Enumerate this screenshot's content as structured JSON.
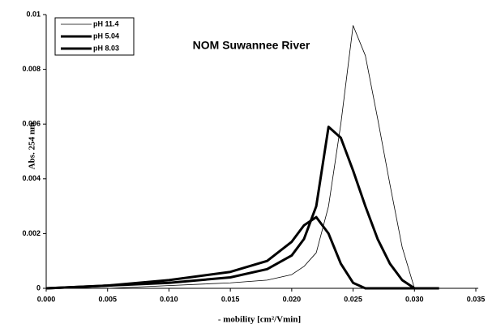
{
  "chart_data": {
    "type": "line",
    "title": "NOM Suwannee River",
    "x_label": "- mobility [cm²/Vmin]",
    "y_label": "Abs. 254 nm",
    "x": [
      0,
      0.005,
      0.01,
      0.015,
      0.018,
      0.02,
      0.021,
      0.022,
      0.023,
      0.024,
      0.025,
      0.026,
      0.027,
      0.028,
      0.029,
      0.03,
      0.032
    ],
    "series": [
      {
        "name": "pH 11.4",
        "color": "#000000",
        "width": 0.8,
        "values": [
          0,
          0,
          0.0001,
          0.0002,
          0.0003,
          0.0005,
          0.0008,
          0.0013,
          0.003,
          0.006,
          0.0096,
          0.0085,
          0.0062,
          0.0038,
          0.0015,
          0,
          0
        ]
      },
      {
        "name": "pH 5.04",
        "color": "#000000",
        "width": 3,
        "values": [
          0,
          0.0001,
          0.0002,
          0.0004,
          0.0007,
          0.0012,
          0.0018,
          0.003,
          0.0059,
          0.0055,
          0.0043,
          0.003,
          0.0018,
          0.0009,
          0.0003,
          0,
          0
        ]
      },
      {
        "name": "pH 8.03",
        "color": "#000000",
        "width": 3,
        "values": [
          0,
          0.0001,
          0.0003,
          0.0006,
          0.001,
          0.0017,
          0.0023,
          0.0026,
          0.002,
          0.0009,
          0.0002,
          0,
          0,
          0,
          0,
          0,
          0
        ]
      }
    ],
    "xlim": [
      0,
      0.035
    ],
    "xticks": [
      {
        "value": 0,
        "label": "0.000"
      },
      {
        "value": 0.005,
        "label": "0.005"
      },
      {
        "value": 0.01,
        "label": "0.010"
      },
      {
        "value": 0.015,
        "label": "0.015"
      },
      {
        "value": 0.02,
        "label": "0.020"
      },
      {
        "value": 0.025,
        "label": "0.025"
      },
      {
        "value": 0.03,
        "label": "0.030"
      },
      {
        "value": 0.035,
        "label": "0.035"
      }
    ],
    "ylim": [
      0,
      0.01
    ],
    "yticks": [
      0,
      0.002,
      0.004,
      0.006,
      0.008,
      0.01
    ],
    "grid": false,
    "legend": "top-left"
  }
}
